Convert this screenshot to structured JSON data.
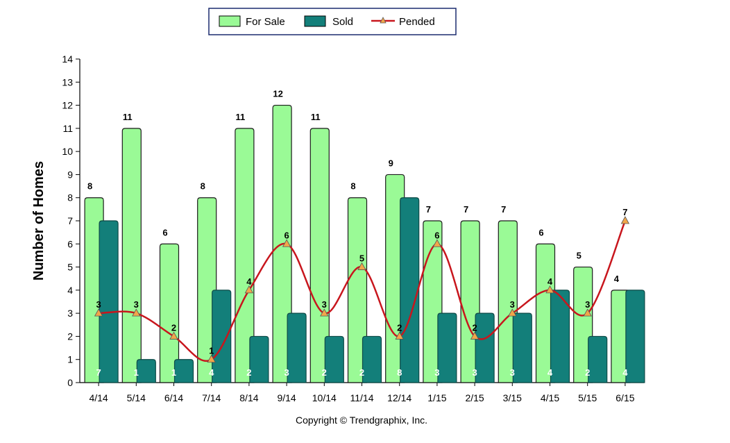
{
  "chart_data": {
    "type": "bar",
    "ylabel": "Number of Homes",
    "ylim": [
      0,
      14
    ],
    "yticks": [
      0,
      1,
      2,
      3,
      4,
      5,
      6,
      7,
      8,
      9,
      10,
      11,
      12,
      13,
      14
    ],
    "categories": [
      "4/14",
      "5/14",
      "6/14",
      "7/14",
      "8/14",
      "9/14",
      "10/14",
      "11/14",
      "12/14",
      "1/15",
      "2/15",
      "3/15",
      "4/15",
      "5/15",
      "6/15"
    ],
    "series": [
      {
        "name": "For Sale",
        "kind": "bar",
        "color": "#9afa96",
        "values": [
          8,
          11,
          6,
          8,
          11,
          12,
          11,
          8,
          9,
          7,
          7,
          7,
          6,
          5,
          4
        ]
      },
      {
        "name": "Sold",
        "kind": "bar",
        "color": "#137f7a",
        "values": [
          7,
          1,
          1,
          4,
          2,
          3,
          2,
          2,
          8,
          3,
          3,
          3,
          4,
          2,
          4
        ]
      },
      {
        "name": "Pended",
        "kind": "line",
        "color": "#c8161d",
        "marker_color": "#f2a64a",
        "values": [
          3,
          3,
          2,
          1,
          4,
          6,
          3,
          5,
          2,
          6,
          2,
          3,
          4,
          3,
          7
        ]
      }
    ],
    "legend_position": "top-center",
    "grid": false
  },
  "footer": {
    "copyright": "Copyright © Trendgraphix, Inc."
  }
}
